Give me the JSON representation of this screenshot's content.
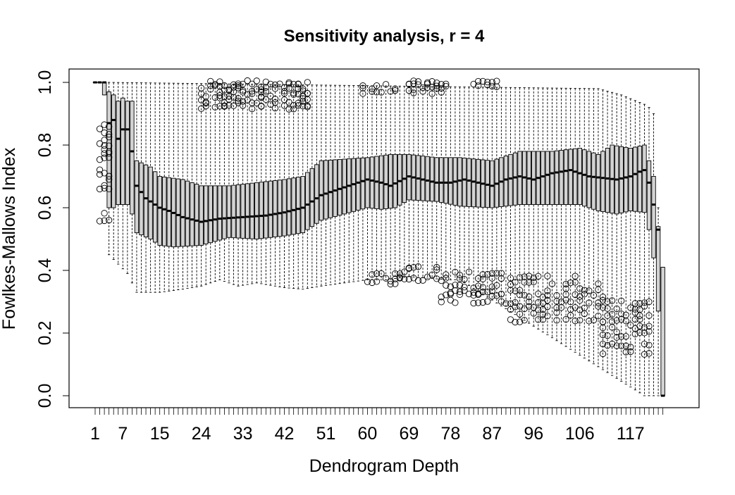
{
  "chart_data": {
    "type": "boxplot",
    "title": "Sensitivity analysis, r = 4",
    "xlabel": "Dendrogram Depth",
    "ylabel": "Fowlkes-Mallows Index",
    "ylim": [
      0,
      1
    ],
    "y_ticks": [
      0.0,
      0.2,
      0.4,
      0.6,
      0.8,
      1.0
    ],
    "y_tick_labels": [
      "0.0",
      "0.2",
      "0.4",
      "0.6",
      "0.8",
      "1.0"
    ],
    "n_groups": 124,
    "x_tick_labels": [
      {
        "depth": 1,
        "label": "1"
      },
      {
        "depth": 7,
        "label": "7"
      },
      {
        "depth": 15,
        "label": "15"
      },
      {
        "depth": 24,
        "label": "24"
      },
      {
        "depth": 33,
        "label": "33"
      },
      {
        "depth": 42,
        "label": "42"
      },
      {
        "depth": 51,
        "label": "51"
      },
      {
        "depth": 60,
        "label": "60"
      },
      {
        "depth": 69,
        "label": "69"
      },
      {
        "depth": 78,
        "label": "78"
      },
      {
        "depth": 87,
        "label": "87"
      },
      {
        "depth": 96,
        "label": "96"
      },
      {
        "depth": 106,
        "label": "106"
      },
      {
        "depth": 117,
        "label": "117"
      }
    ],
    "median_anchors": [
      [
        1,
        1.0
      ],
      [
        2,
        1.0
      ],
      [
        3,
        1.0
      ],
      [
        4,
        0.87
      ],
      [
        5,
        0.88
      ],
      [
        6,
        0.82
      ],
      [
        7,
        0.85
      ],
      [
        8,
        0.85
      ],
      [
        9,
        0.78
      ],
      [
        10,
        0.67
      ],
      [
        12,
        0.63
      ],
      [
        15,
        0.6
      ],
      [
        17,
        0.59
      ],
      [
        20,
        0.57
      ],
      [
        24,
        0.555
      ],
      [
        28,
        0.565
      ],
      [
        33,
        0.57
      ],
      [
        38,
        0.575
      ],
      [
        42,
        0.585
      ],
      [
        46,
        0.6
      ],
      [
        50,
        0.64
      ],
      [
        55,
        0.665
      ],
      [
        60,
        0.69
      ],
      [
        63,
        0.68
      ],
      [
        65,
        0.67
      ],
      [
        69,
        0.7
      ],
      [
        72,
        0.69
      ],
      [
        75,
        0.68
      ],
      [
        78,
        0.68
      ],
      [
        81,
        0.69
      ],
      [
        84,
        0.68
      ],
      [
        87,
        0.67
      ],
      [
        90,
        0.69
      ],
      [
        93,
        0.7
      ],
      [
        96,
        0.69
      ],
      [
        100,
        0.71
      ],
      [
        104,
        0.72
      ],
      [
        108,
        0.7
      ],
      [
        111,
        0.695
      ],
      [
        114,
        0.69
      ],
      [
        117,
        0.7
      ],
      [
        119,
        0.715
      ],
      [
        120,
        0.72
      ],
      [
        121,
        0.68
      ],
      [
        122,
        0.61
      ],
      [
        123,
        0.53
      ],
      [
        124,
        0.0
      ]
    ],
    "q1_anchors": [
      [
        1,
        1.0
      ],
      [
        2,
        1.0
      ],
      [
        3,
        0.96
      ],
      [
        4,
        0.6
      ],
      [
        5,
        0.6
      ],
      [
        6,
        0.61
      ],
      [
        7,
        0.61
      ],
      [
        8,
        0.61
      ],
      [
        9,
        0.58
      ],
      [
        10,
        0.52
      ],
      [
        13,
        0.5
      ],
      [
        15,
        0.48
      ],
      [
        18,
        0.475
      ],
      [
        24,
        0.48
      ],
      [
        30,
        0.505
      ],
      [
        36,
        0.5
      ],
      [
        42,
        0.51
      ],
      [
        46,
        0.52
      ],
      [
        50,
        0.56
      ],
      [
        55,
        0.58
      ],
      [
        60,
        0.6
      ],
      [
        63,
        0.595
      ],
      [
        66,
        0.6
      ],
      [
        69,
        0.625
      ],
      [
        75,
        0.62
      ],
      [
        80,
        0.605
      ],
      [
        87,
        0.6
      ],
      [
        93,
        0.61
      ],
      [
        100,
        0.61
      ],
      [
        106,
        0.61
      ],
      [
        110,
        0.59
      ],
      [
        114,
        0.58
      ],
      [
        117,
        0.59
      ],
      [
        120,
        0.585
      ],
      [
        121,
        0.53
      ],
      [
        122,
        0.44
      ],
      [
        123,
        0.27
      ],
      [
        124,
        0.0
      ]
    ],
    "q3_anchors": [
      [
        1,
        1.0
      ],
      [
        2,
        1.0
      ],
      [
        3,
        1.0
      ],
      [
        4,
        0.97
      ],
      [
        5,
        0.96
      ],
      [
        6,
        0.94
      ],
      [
        7,
        0.95
      ],
      [
        8,
        0.94
      ],
      [
        9,
        0.94
      ],
      [
        10,
        0.75
      ],
      [
        13,
        0.73
      ],
      [
        15,
        0.7
      ],
      [
        20,
        0.69
      ],
      [
        24,
        0.67
      ],
      [
        30,
        0.67
      ],
      [
        36,
        0.68
      ],
      [
        42,
        0.69
      ],
      [
        46,
        0.7
      ],
      [
        50,
        0.75
      ],
      [
        55,
        0.755
      ],
      [
        60,
        0.76
      ],
      [
        65,
        0.77
      ],
      [
        69,
        0.77
      ],
      [
        75,
        0.76
      ],
      [
        80,
        0.76
      ],
      [
        87,
        0.75
      ],
      [
        93,
        0.78
      ],
      [
        100,
        0.78
      ],
      [
        106,
        0.79
      ],
      [
        110,
        0.77
      ],
      [
        113,
        0.8
      ],
      [
        117,
        0.79
      ],
      [
        120,
        0.8
      ],
      [
        121,
        0.75
      ],
      [
        122,
        0.7
      ],
      [
        123,
        0.54
      ],
      [
        124,
        0.41
      ]
    ],
    "whisker_low_anchors": [
      [
        1,
        1.0
      ],
      [
        2,
        1.0
      ],
      [
        3,
        0.96
      ],
      [
        4,
        0.45
      ],
      [
        6,
        0.42
      ],
      [
        8,
        0.39
      ],
      [
        10,
        0.33
      ],
      [
        15,
        0.33
      ],
      [
        20,
        0.34
      ],
      [
        24,
        0.35
      ],
      [
        28,
        0.37
      ],
      [
        32,
        0.35
      ],
      [
        36,
        0.36
      ],
      [
        42,
        0.345
      ],
      [
        46,
        0.34
      ],
      [
        50,
        0.35
      ],
      [
        55,
        0.36
      ],
      [
        60,
        0.37
      ],
      [
        64,
        0.37
      ],
      [
        69,
        0.38
      ],
      [
        73,
        0.375
      ],
      [
        78,
        0.37
      ],
      [
        80,
        0.37
      ],
      [
        120,
        0.0
      ],
      [
        124,
        0.0
      ]
    ],
    "whisker_high_anchors": [
      [
        1,
        1.0
      ],
      [
        2,
        1.0
      ],
      [
        3,
        1.0
      ],
      [
        4,
        1.0
      ],
      [
        110,
        0.98
      ],
      [
        115,
        0.96
      ],
      [
        120,
        0.93
      ],
      [
        121,
        0.92
      ],
      [
        122,
        0.9
      ],
      [
        123,
        0.6
      ],
      [
        124,
        0.41
      ]
    ],
    "outlier_clusters": [
      {
        "from": 2,
        "to": 4,
        "values": [
          0.86,
          0.85,
          0.84,
          0.83,
          0.82,
          0.8,
          0.78,
          0.77,
          0.76,
          0.75,
          0.72,
          0.71,
          0.7,
          0.69,
          0.67,
          0.66,
          0.58,
          0.56
        ]
      },
      {
        "from": 24,
        "to": 47,
        "values": [
          1.0,
          0.99,
          0.98,
          0.97,
          0.96,
          0.95,
          0.94,
          0.93,
          0.92
        ]
      },
      {
        "from": 59,
        "to": 66,
        "values": [
          0.99,
          0.98,
          0.97
        ]
      },
      {
        "from": 69,
        "to": 77,
        "values": [
          1.0,
          0.99,
          0.98,
          0.97
        ]
      },
      {
        "from": 83,
        "to": 88,
        "values": [
          1.0,
          0.99
        ]
      },
      {
        "from": 59,
        "to": 66,
        "values": [
          0.385,
          0.37,
          0.36
        ]
      },
      {
        "from": 67,
        "to": 75,
        "values": [
          0.41,
          0.4,
          0.39,
          0.38,
          0.37
        ]
      },
      {
        "from": 76,
        "to": 90,
        "values": [
          0.39,
          0.37,
          0.35,
          0.33,
          0.32,
          0.3
        ]
      },
      {
        "from": 91,
        "to": 111,
        "values": [
          0.38,
          0.36,
          0.34,
          0.32,
          0.3,
          0.28,
          0.26,
          0.24
        ]
      },
      {
        "from": 111,
        "to": 121,
        "values": [
          0.3,
          0.28,
          0.26,
          0.24,
          0.22,
          0.2,
          0.19,
          0.16,
          0.135
        ]
      }
    ]
  }
}
